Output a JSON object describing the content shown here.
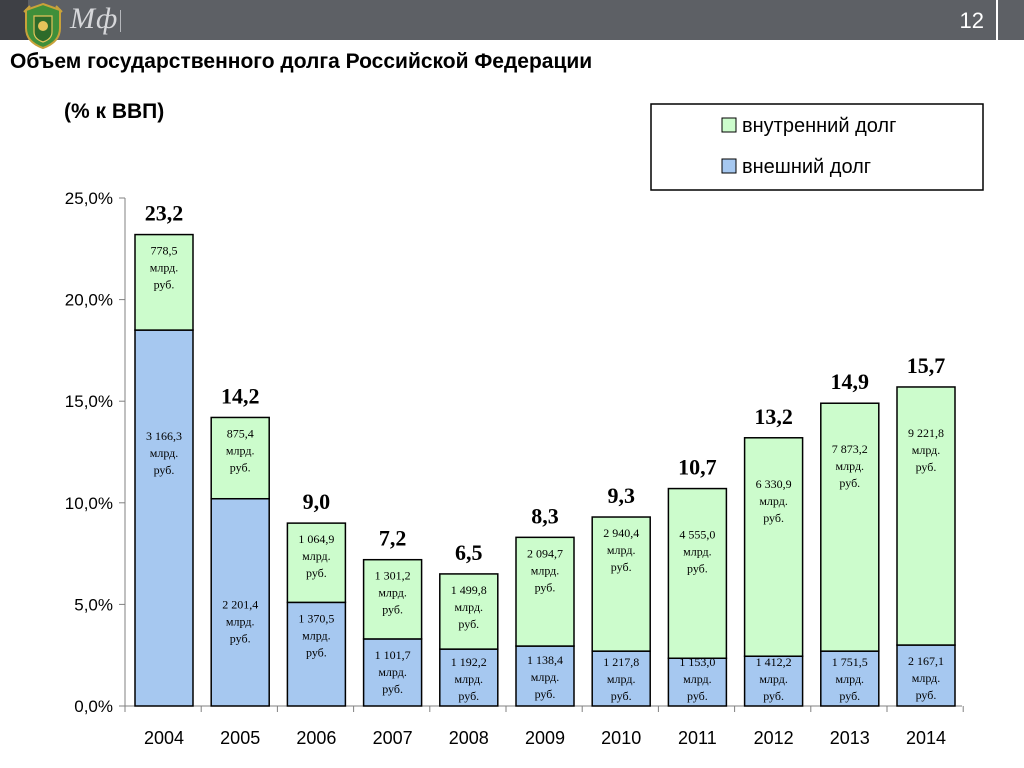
{
  "header": {
    "brand": "Мф",
    "page_number": "12"
  },
  "title": "Объем государственного долга Российской Федерации",
  "subtitle": "(% к ВВП)",
  "colors": {
    "external": "#a6c8f0",
    "internal": "#ccfccc",
    "outline": "#000000"
  },
  "chart_data": {
    "type": "bar",
    "stacked": true,
    "categories": [
      "2004",
      "2005",
      "2006",
      "2007",
      "2008",
      "2009",
      "2010",
      "2011",
      "2012",
      "2013",
      "2014"
    ],
    "ylim": [
      0,
      25
    ],
    "yticks": [
      "0,0%",
      "5,0%",
      "10,0%",
      "15,0%",
      "20,0%",
      "25,0%"
    ],
    "legend": {
      "position": "top-right",
      "entries": [
        "внутренний долг",
        "внешний долг"
      ]
    },
    "totals": [
      "23,2",
      "14,2",
      "9,0",
      "7,2",
      "6,5",
      "8,3",
      "9,3",
      "10,7",
      "13,2",
      "14,9",
      "15,7"
    ],
    "series": [
      {
        "name": "внешний долг",
        "values": [
          18.5,
          10.2,
          5.1,
          3.3,
          2.8,
          2.95,
          2.7,
          2.35,
          2.45,
          2.7,
          3.0
        ],
        "labels": [
          "3 166,3",
          "2 201,4",
          "1 370,5",
          "1 101,7",
          "1 192,2",
          "1 138,4",
          "1 217,8",
          "1 153,0",
          "1 412,2",
          "1 751,5",
          "2 167,1"
        ]
      },
      {
        "name": "внутренний долг",
        "values": [
          4.7,
          4.0,
          3.9,
          3.9,
          3.7,
          5.35,
          6.6,
          8.35,
          10.75,
          12.2,
          12.7
        ],
        "labels": [
          "778,5",
          "875,4",
          "1 064,9",
          "1 301,2",
          "1 499,8",
          "2 094,7",
          "2 940,4",
          "4 555,0",
          "6 330,9",
          "7 873,2",
          "9 221,8"
        ]
      }
    ],
    "unit_lines": [
      "млрд.",
      "руб."
    ]
  }
}
